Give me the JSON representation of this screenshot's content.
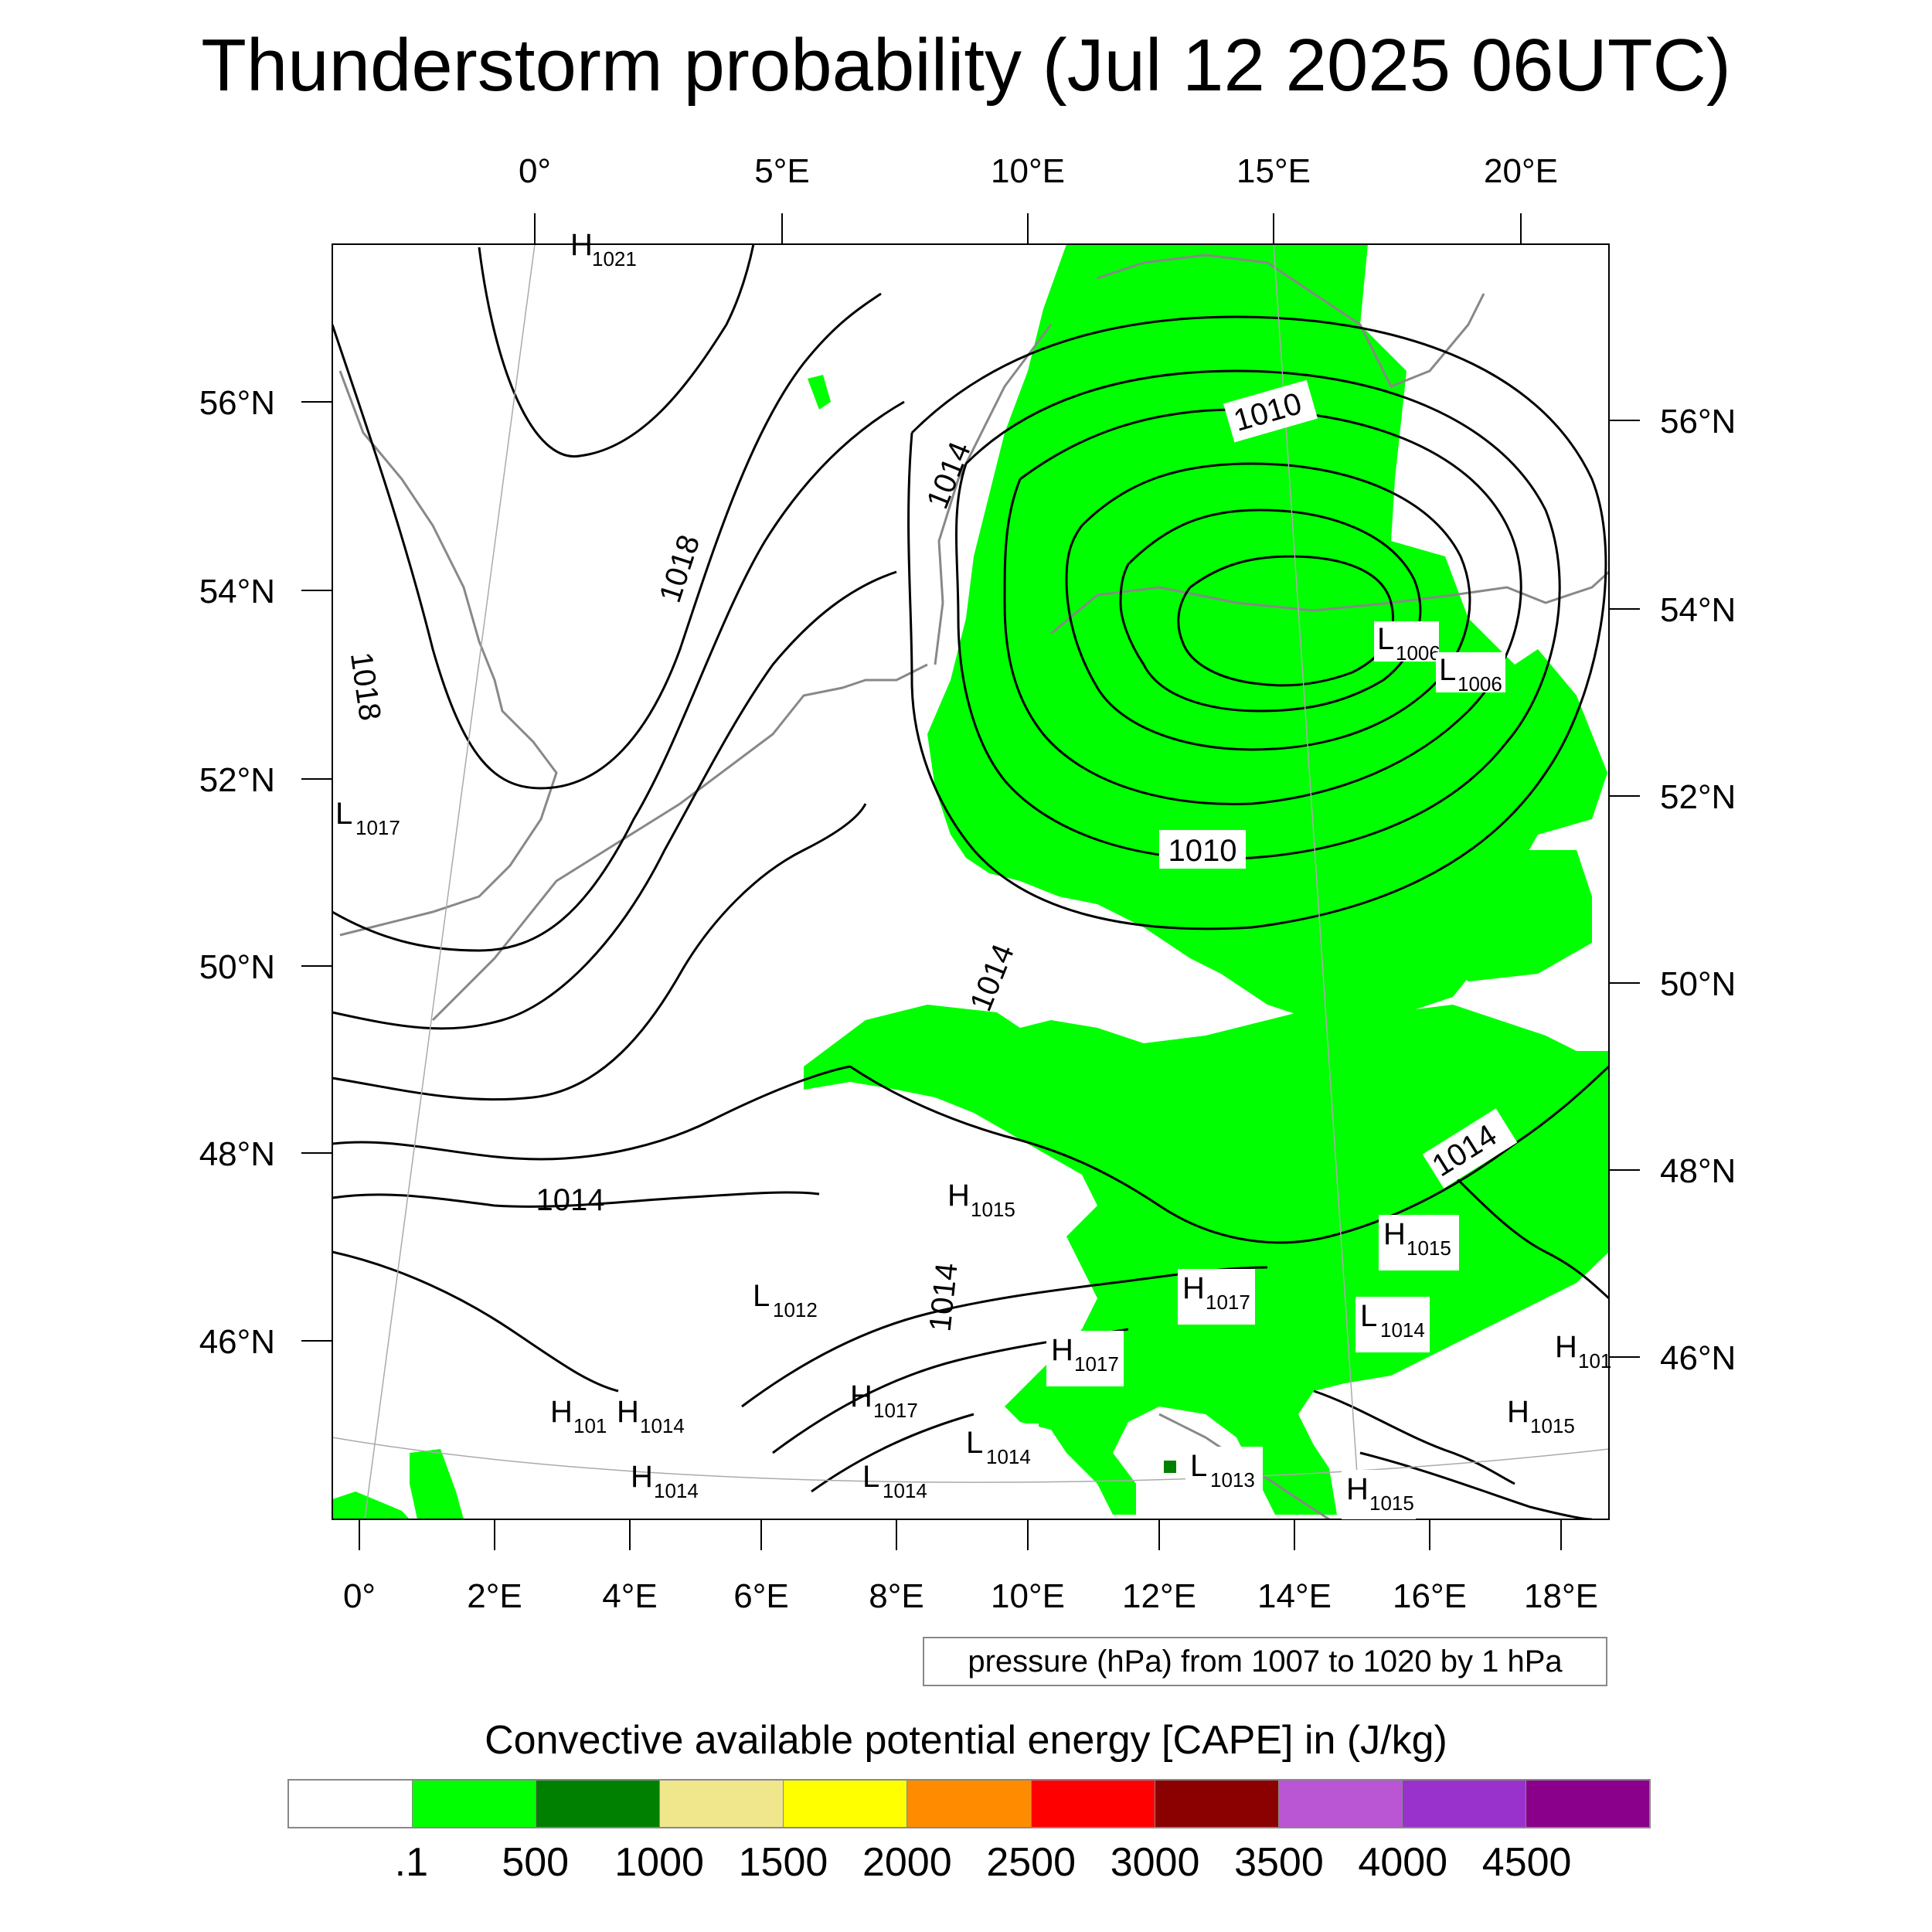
{
  "title": "Thunderstorm probability (Jul 12 2025 06UTC)",
  "axes": {
    "top_lon_labels": [
      "0°",
      "5°E",
      "10°E",
      "15°E",
      "20°E"
    ],
    "bottom_lon_labels": [
      "0°",
      "2°E",
      "4°E",
      "6°E",
      "8°E",
      "10°E",
      "12°E",
      "14°E",
      "16°E",
      "18°E"
    ],
    "left_lat_labels": [
      "56°N",
      "54°N",
      "52°N",
      "50°N",
      "48°N",
      "46°N"
    ],
    "right_lat_labels": [
      "56°N",
      "54°N",
      "52°N",
      "50°N",
      "48°N",
      "46°N"
    ]
  },
  "isobar_labels": [
    "1018",
    "1018",
    "1014",
    "1010",
    "1010",
    "1014",
    "1014",
    "1014",
    "1014"
  ],
  "pressure_centers": [
    {
      "type": "H",
      "value": "1021"
    },
    {
      "type": "L",
      "value": "1017"
    },
    {
      "type": "L",
      "value": "1006"
    },
    {
      "type": "L",
      "value": "1006"
    },
    {
      "type": "H",
      "value": "1015"
    },
    {
      "type": "H",
      "value": "1015"
    },
    {
      "type": "H",
      "value": "1017"
    },
    {
      "type": "L",
      "value": "1014"
    },
    {
      "type": "L",
      "value": "1012"
    },
    {
      "type": "H",
      "value": "1017"
    },
    {
      "type": "H",
      "value": "101"
    },
    {
      "type": "H",
      "value": "1014"
    },
    {
      "type": "H",
      "value": "1017"
    },
    {
      "type": "H",
      "value": "101"
    },
    {
      "type": "H",
      "value": "1015"
    },
    {
      "type": "L",
      "value": "1014"
    },
    {
      "type": "L",
      "value": "1013"
    },
    {
      "type": "H",
      "value": "1014"
    },
    {
      "type": "L",
      "value": "1014"
    },
    {
      "type": "H",
      "value": "1015"
    }
  ],
  "note": "pressure (hPa) from 1007 to 1020 by 1 hPa",
  "colorbar": {
    "title": "Convective available potential energy [CAPE] in (J/kg)",
    "colors": [
      "#ffffff",
      "#00ff00",
      "#008000",
      "#f0e68c",
      "#ffff00",
      "#ff8c00",
      "#ff0000",
      "#8b0000",
      "#ba55d3",
      "#9932cc",
      "#8b008b"
    ],
    "labels": [
      ".1",
      "500",
      "1000",
      "1500",
      "2000",
      "2500",
      "3000",
      "3500",
      "4000",
      "4500"
    ]
  },
  "colors": {
    "cape_fill": "#00ff00",
    "isobar": "#000000",
    "coastline": "#888888"
  }
}
